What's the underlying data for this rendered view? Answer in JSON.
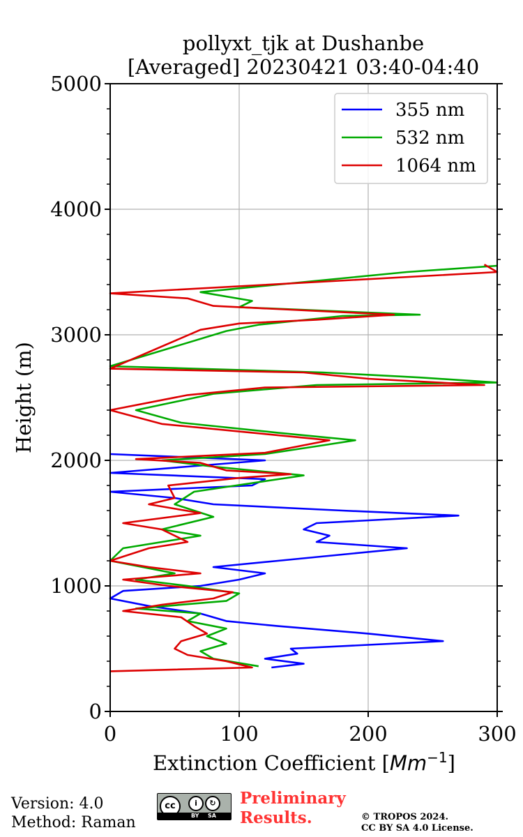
{
  "chart_data": {
    "type": "line",
    "title": "pollyxt_tjk at Dushanbe",
    "subtitle": "[Averaged] 20230421 03:40-04:40",
    "xlabel": "Extinction Coefficient [",
    "xlabel_unit": "Mm",
    "xlabel_exp": "−1",
    "xlabel_close": "]",
    "ylabel": "Height (m)",
    "xlim": [
      0,
      300
    ],
    "ylim": [
      0,
      5000
    ],
    "xticks": [
      0,
      100,
      200,
      300
    ],
    "xtick_labels": [
      "0",
      "100",
      "200",
      "300"
    ],
    "yticks": [
      0,
      1000,
      2000,
      3000,
      4000,
      5000
    ],
    "ytick_labels": [
      "0",
      "1000",
      "2000",
      "3000",
      "4000",
      "5000"
    ],
    "grid": true,
    "legend_position": "top-right",
    "series": [
      {
        "name": "355 nm",
        "color": "#0000ff",
        "points": [
          [
            125,
            350
          ],
          [
            150,
            380
          ],
          [
            120,
            420
          ],
          [
            145,
            460
          ],
          [
            140,
            500
          ],
          [
            258,
            560
          ],
          [
            200,
            620
          ],
          [
            130,
            680
          ],
          [
            90,
            720
          ],
          [
            70,
            780
          ],
          [
            30,
            840
          ],
          [
            0,
            900
          ],
          [
            10,
            960
          ],
          [
            70,
            1000
          ],
          [
            100,
            1050
          ],
          [
            120,
            1100
          ],
          [
            80,
            1150
          ],
          [
            130,
            1200
          ],
          [
            180,
            1250
          ],
          [
            230,
            1300
          ],
          [
            160,
            1350
          ],
          [
            170,
            1400
          ],
          [
            150,
            1450
          ],
          [
            160,
            1500
          ],
          [
            270,
            1560
          ],
          [
            180,
            1600
          ],
          [
            80,
            1650
          ],
          [
            50,
            1700
          ],
          [
            0,
            1750
          ],
          [
            110,
            1800
          ],
          [
            120,
            1850
          ],
          [
            0,
            1900
          ],
          [
            60,
            1950
          ],
          [
            120,
            2000
          ],
          [
            0,
            2050
          ]
        ]
      },
      {
        "name": "532 nm",
        "color": "#00aa00",
        "points": [
          [
            115,
            360
          ],
          [
            80,
            420
          ],
          [
            70,
            480
          ],
          [
            90,
            540
          ],
          [
            75,
            600
          ],
          [
            90,
            660
          ],
          [
            60,
            720
          ],
          [
            70,
            780
          ],
          [
            20,
            820
          ],
          [
            90,
            880
          ],
          [
            100,
            940
          ],
          [
            60,
            1000
          ],
          [
            20,
            1050
          ],
          [
            50,
            1100
          ],
          [
            0,
            1200
          ],
          [
            10,
            1300
          ],
          [
            70,
            1400
          ],
          [
            40,
            1450
          ],
          [
            80,
            1550
          ],
          [
            50,
            1650
          ],
          [
            65,
            1750
          ],
          [
            150,
            1880
          ],
          [
            80,
            1950
          ],
          [
            40,
            2000
          ],
          [
            120,
            2050
          ],
          [
            165,
            2120
          ],
          [
            190,
            2160
          ],
          [
            130,
            2220
          ],
          [
            55,
            2300
          ],
          [
            20,
            2400
          ],
          [
            80,
            2530
          ],
          [
            160,
            2600
          ],
          [
            300,
            2620
          ],
          [
            240,
            2660
          ],
          [
            165,
            2700
          ],
          [
            0,
            2750
          ],
          [
            90,
            3030
          ],
          [
            115,
            3080
          ],
          [
            180,
            3150
          ],
          [
            240,
            3160
          ],
          [
            100,
            3220
          ],
          [
            110,
            3270
          ],
          [
            70,
            3340
          ],
          [
            230,
            3500
          ],
          [
            300,
            3550
          ]
        ]
      },
      {
        "name": "1064 nm",
        "color": "#dd0000",
        "points": [
          [
            0,
            320
          ],
          [
            110,
            350
          ],
          [
            90,
            400
          ],
          [
            60,
            450
          ],
          [
            50,
            500
          ],
          [
            55,
            560
          ],
          [
            75,
            620
          ],
          [
            65,
            680
          ],
          [
            55,
            750
          ],
          [
            10,
            800
          ],
          [
            40,
            850
          ],
          [
            80,
            900
          ],
          [
            95,
            950
          ],
          [
            45,
            1000
          ],
          [
            10,
            1050
          ],
          [
            70,
            1100
          ],
          [
            30,
            1150
          ],
          [
            0,
            1200
          ],
          [
            30,
            1300
          ],
          [
            60,
            1350
          ],
          [
            40,
            1450
          ],
          [
            10,
            1500
          ],
          [
            70,
            1580
          ],
          [
            30,
            1650
          ],
          [
            50,
            1700
          ],
          [
            45,
            1800
          ],
          [
            100,
            1860
          ],
          [
            140,
            1890
          ],
          [
            90,
            1920
          ],
          [
            70,
            1980
          ],
          [
            20,
            2010
          ],
          [
            120,
            2060
          ],
          [
            150,
            2120
          ],
          [
            170,
            2160
          ],
          [
            120,
            2210
          ],
          [
            40,
            2290
          ],
          [
            0,
            2400
          ],
          [
            60,
            2520
          ],
          [
            120,
            2580
          ],
          [
            290,
            2600
          ],
          [
            200,
            2650
          ],
          [
            150,
            2700
          ],
          [
            0,
            2730
          ],
          [
            70,
            3040
          ],
          [
            100,
            3090
          ],
          [
            160,
            3120
          ],
          [
            220,
            3160
          ],
          [
            80,
            3230
          ],
          [
            60,
            3290
          ],
          [
            0,
            3330
          ],
          [
            300,
            3500
          ],
          [
            290,
            3560
          ]
        ]
      }
    ]
  },
  "footer": {
    "version": "Version: 4.0",
    "method": "Method: Raman",
    "cc_text": "cc",
    "cc_by": "BY",
    "cc_sa": "SA",
    "preliminary_line1": "Preliminary",
    "preliminary_line2": "Results.",
    "copyright": "© TROPOS 2024.",
    "license": "CC BY SA 4.0 License."
  }
}
